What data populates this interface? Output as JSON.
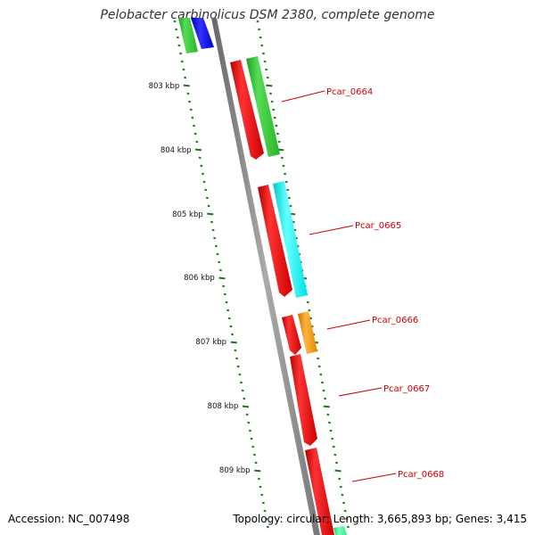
{
  "header": {
    "title": "Pelobacter carbinolicus DSM 2380, complete genome"
  },
  "footer": {
    "accession": "Accession: NC_007498",
    "summary": "Topology: circular; Length: 3,665,893 bp; Genes: 3,415"
  },
  "colors": {
    "backbone": "#8a8a8a",
    "ticks": "#1a7a1a",
    "cds_forward": "#ff0000",
    "label": "#cc0000",
    "cog_green": "#33cc33",
    "cog_blue": "#0000ff",
    "cog_cyan": "#00ffff",
    "cog_orange": "#ff9900",
    "cog_teal": "#33ff99"
  },
  "ruler": {
    "unit": "kbp",
    "labels": [
      "803 kbp",
      "804 kbp",
      "805 kbp",
      "806 kbp",
      "807 kbp",
      "808 kbp",
      "809 kbp"
    ]
  },
  "genes": [
    {
      "label": "Pcar_0664",
      "cog_color": "#33cc33"
    },
    {
      "label": "Pcar_0665",
      "cog_color": "#00ffff"
    },
    {
      "label": "Pcar_0666",
      "cog_color": "#ff9900"
    },
    {
      "label": "Pcar_0667",
      "cog_color": null
    },
    {
      "label": "Pcar_0668",
      "cog_color": "#33ff99"
    }
  ]
}
